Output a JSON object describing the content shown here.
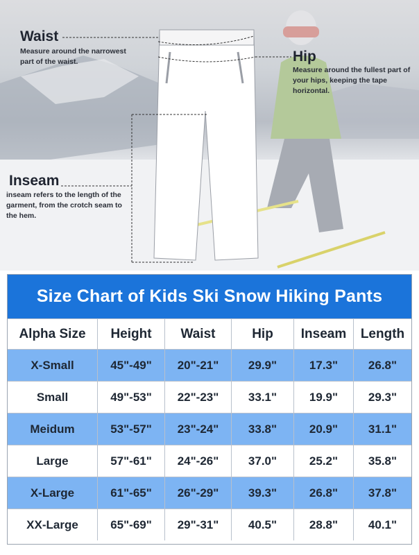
{
  "callouts": {
    "waist": {
      "title": "Waist",
      "desc": "Measure around the narrowest part of the waist."
    },
    "hip": {
      "title": "Hip",
      "desc": "Measure around the fullest part of your hips, keeping the tape horizontal."
    },
    "inseam": {
      "title": "Inseam",
      "desc": "inseam refers to the length of the garment, from the crotch seam to the hem."
    }
  },
  "table": {
    "title": "Size Chart of Kids Ski Snow Hiking Pants",
    "headers": [
      "Alpha Size",
      "Height",
      "Waist",
      "Hip",
      "Inseam",
      "Length"
    ],
    "rows": [
      [
        "X-Small",
        "45\"-49\"",
        "20\"-21\"",
        "29.9\"",
        "17.3\"",
        "26.8\""
      ],
      [
        "Small",
        "49\"-53\"",
        "22\"-23\"",
        "33.1\"",
        "19.9\"",
        "29.3\""
      ],
      [
        "Meidum",
        "53\"-57\"",
        "23\"-24\"",
        "33.8\"",
        "20.9\"",
        "31.1\""
      ],
      [
        "Large",
        "57\"-61\"",
        "24\"-26\"",
        "37.0\"",
        "25.2\"",
        "35.8\""
      ],
      [
        "X-Large",
        "61\"-65\"",
        "26\"-29\"",
        "39.3\"",
        "26.8\"",
        "37.8\""
      ],
      [
        "XX-Large",
        "65\"-69\"",
        "29\"-31\"",
        "40.5\"",
        "28.8\"",
        "40.1\""
      ]
    ]
  },
  "colors": {
    "header_blue": "#1b74da",
    "row_blue": "#7db4f3"
  }
}
